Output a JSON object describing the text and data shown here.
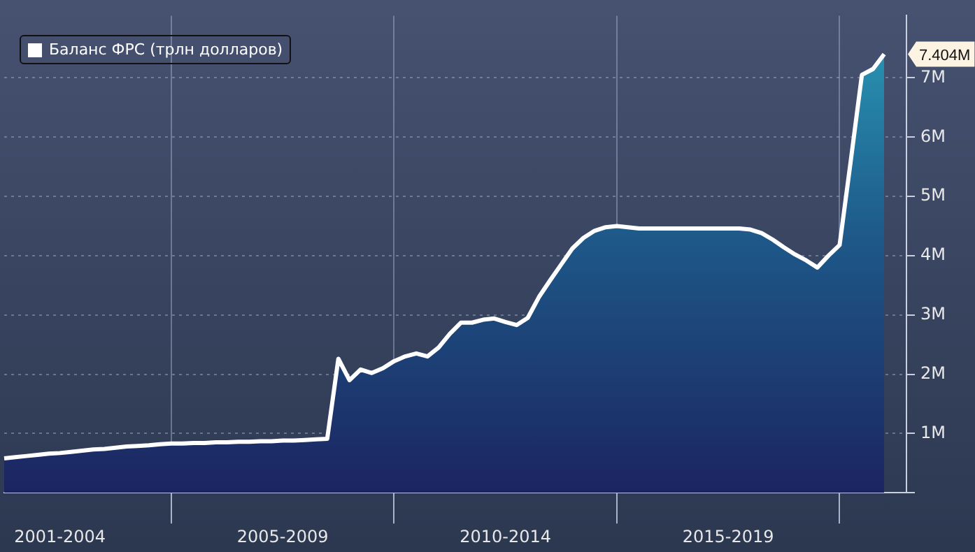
{
  "chart_data": {
    "type": "area",
    "legend": "top left",
    "grid": true,
    "categories": [
      null,
      null,
      null,
      null,
      null,
      "2001-2004",
      null,
      null,
      null,
      null,
      null,
      null,
      null,
      null,
      null,
      null,
      null,
      null,
      null,
      null,
      null,
      null,
      null,
      null,
      null,
      "2005-2009",
      null,
      null,
      null,
      null,
      null,
      null,
      null,
      null,
      null,
      null,
      null,
      null,
      null,
      null,
      null,
      null,
      null,
      null,
      null,
      "2010-2014",
      null,
      null,
      null,
      null,
      null,
      null,
      null,
      null,
      null,
      null,
      null,
      null,
      null,
      null,
      null,
      null,
      null,
      null,
      null,
      "2015-2019",
      null,
      null,
      null,
      null,
      null,
      null,
      null,
      null,
      null,
      null,
      null,
      null,
      null,
      null,
      null,
      null
    ],
    "series": [
      {
        "name": "Баланс ФРС (трлн долларов)",
        "color": "#ffffff",
        "values": [
          0.58,
          0.6,
          0.62,
          0.64,
          0.66,
          0.67,
          0.69,
          0.71,
          0.73,
          0.74,
          0.76,
          0.78,
          0.79,
          0.8,
          0.82,
          0.83,
          0.83,
          0.84,
          0.84,
          0.85,
          0.85,
          0.86,
          0.86,
          0.87,
          0.87,
          0.88,
          0.88,
          0.89,
          0.9,
          0.91,
          2.26,
          1.9,
          2.08,
          2.02,
          2.1,
          2.22,
          2.3,
          2.35,
          2.3,
          2.45,
          2.68,
          2.87,
          2.87,
          2.92,
          2.94,
          2.88,
          2.83,
          2.95,
          3.3,
          3.58,
          3.85,
          4.12,
          4.3,
          4.42,
          4.48,
          4.5,
          4.48,
          4.46,
          4.46,
          4.46,
          4.46,
          4.46,
          4.46,
          4.46,
          4.46,
          4.46,
          4.46,
          4.44,
          4.38,
          4.27,
          4.14,
          4.02,
          3.92,
          3.8,
          4.0,
          4.18,
          5.6,
          7.05,
          7.15,
          7.4,
          null,
          null
        ]
      }
    ],
    "ylim": [
      0,
      8.05
    ],
    "yticks": [
      {
        "value": 0,
        "label": null
      },
      {
        "value": 1,
        "label": "1M"
      },
      {
        "value": 2,
        "label": "2M"
      },
      {
        "value": 3,
        "label": "3M"
      },
      {
        "value": 4,
        "label": "4M"
      },
      {
        "value": 5,
        "label": "5M"
      },
      {
        "value": 6,
        "label": "6M"
      },
      {
        "value": 7,
        "label": "7M"
      }
    ],
    "annotations": [
      "7.404M"
    ]
  }
}
